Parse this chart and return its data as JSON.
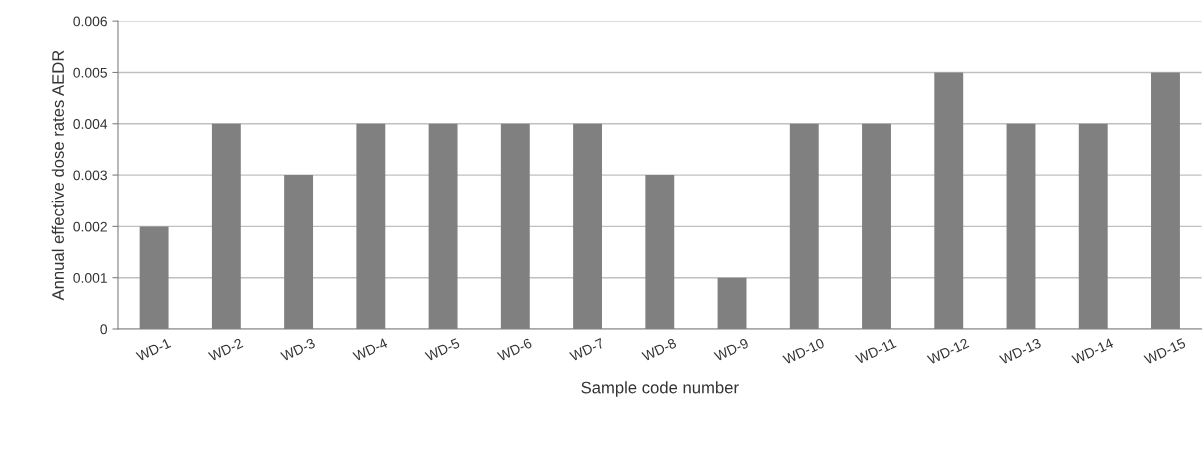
{
  "chart_data": {
    "type": "bar",
    "xlabel": "Sample code number",
    "ylabel": "Annual effective dose rates AEDR",
    "categories": [
      "WD-1",
      "WD-2",
      "WD-3",
      "WD-4",
      "WD-5",
      "WD-6",
      "WD-7",
      "WD-8",
      "WD-9",
      "WD-10",
      "WD-11",
      "WD-12",
      "WD-13",
      "WD-14",
      "WD-15"
    ],
    "values": [
      0.002,
      0.004,
      0.003,
      0.004,
      0.004,
      0.004,
      0.004,
      0.003,
      0.001,
      0.004,
      0.004,
      0.005,
      0.004,
      0.004,
      0.005
    ],
    "color": "#808080",
    "ylim": [
      0,
      0.006
    ],
    "yticks": [
      {
        "value": 0,
        "label": "0"
      },
      0.001,
      0.002,
      0.003,
      0.004,
      0.005,
      0.006
    ],
    "grid": "y"
  }
}
